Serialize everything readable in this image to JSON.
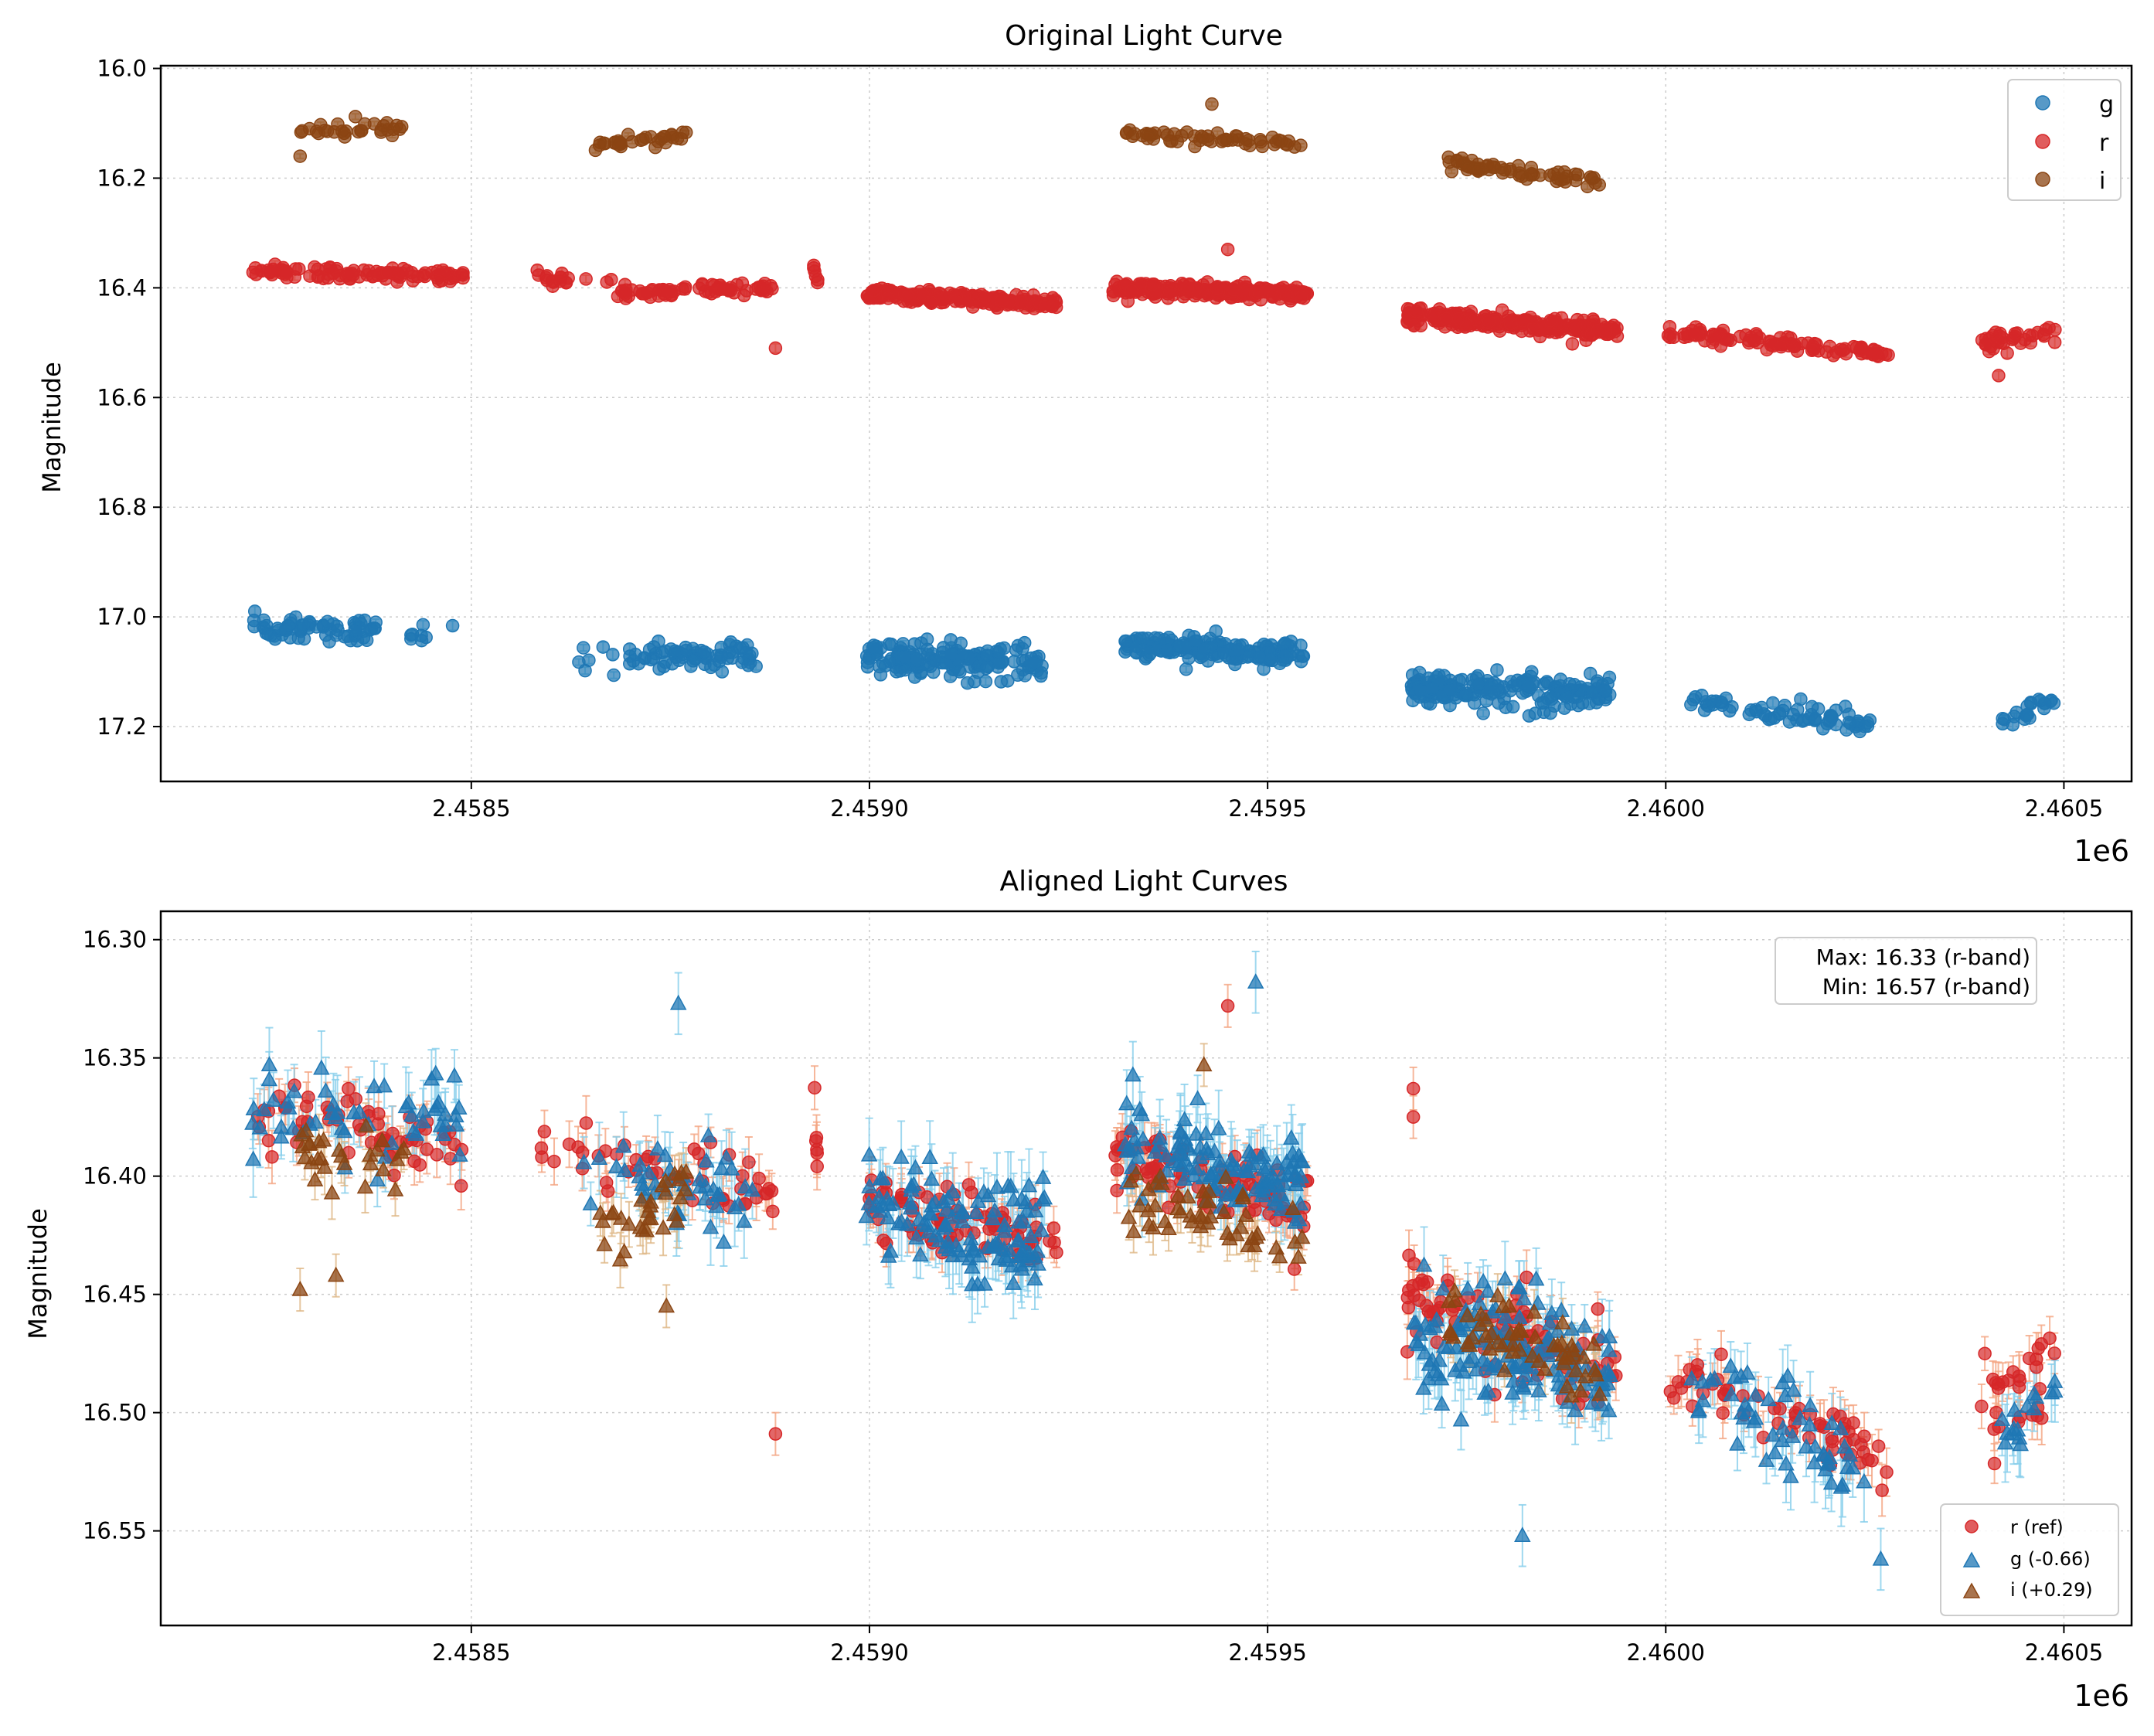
{
  "colors": {
    "g": "#1f77b4",
    "g_err": "#87ceeb",
    "r": "#d62728",
    "r_err": "#f4a582",
    "i": "#8b4513",
    "i_err": "#deb887",
    "grid": "#cccccc",
    "axis": "#000000"
  },
  "chart_data": [
    {
      "type": "scatter",
      "title": "Original Light Curve",
      "xlabel": "",
      "ylabel": "Magnitude",
      "x_offset_label": "1e6",
      "xlim": [
        2458110,
        2460585
      ],
      "ylim": [
        17.3,
        15.995
      ],
      "y_inverted": true,
      "xticks": [
        2458500,
        2459000,
        2459500,
        2460000,
        2460500
      ],
      "xtick_labels": [
        "2.4585",
        "2.4590",
        "2.4595",
        "2.4600",
        "2.4605"
      ],
      "yticks": [
        16.0,
        16.2,
        16.4,
        16.6,
        16.8,
        17.0,
        17.2
      ],
      "ytick_labels": [
        "16.0",
        "16.2",
        "16.4",
        "16.6",
        "16.8",
        "17.0",
        "17.2"
      ],
      "grid": true,
      "legend": {
        "placement": "top-right",
        "entries": [
          {
            "label": "g",
            "band": "g",
            "marker": "circle"
          },
          {
            "label": "r",
            "band": "r",
            "marker": "circle"
          },
          {
            "label": "i",
            "band": "i",
            "marker": "circle"
          }
        ]
      },
      "series": [
        {
          "name": "g",
          "marker": "circle",
          "clusters": [
            {
              "x0": 2458225,
              "x1": 2458380,
              "y0": 17.02,
              "y1": 17.03,
              "spread": 0.022,
              "n": 70,
              "err": 0.008
            },
            {
              "x0": 2458410,
              "x1": 2458490,
              "y0": 17.04,
              "y1": 17.04,
              "spread": 0.022,
              "n": 8,
              "err": 0.008
            },
            {
              "x0": 2458635,
              "x1": 2458860,
              "y0": 17.07,
              "y1": 17.07,
              "spread": 0.025,
              "n": 80,
              "err": 0.008
            },
            {
              "x0": 2458995,
              "x1": 2459220,
              "y0": 17.07,
              "y1": 17.09,
              "spread": 0.028,
              "n": 170,
              "err": 0.008
            },
            {
              "x0": 2459320,
              "x1": 2459545,
              "y0": 17.05,
              "y1": 17.07,
              "spread": 0.022,
              "n": 170,
              "err": 0.008
            },
            {
              "x0": 2459680,
              "x1": 2459930,
              "y0": 17.13,
              "y1": 17.14,
              "spread": 0.028,
              "n": 200,
              "err": 0.008
            },
            {
              "x0": 2460030,
              "x1": 2460270,
              "y0": 17.15,
              "y1": 17.2,
              "spread": 0.02,
              "n": 70,
              "err": 0.008
            },
            {
              "x0": 2460420,
              "x1": 2460490,
              "y0": 17.19,
              "y1": 17.15,
              "spread": 0.015,
              "n": 22,
              "err": 0.008
            }
          ]
        },
        {
          "name": "r",
          "marker": "circle",
          "clusters": [
            {
              "x0": 2458225,
              "x1": 2458490,
              "y0": 16.37,
              "y1": 16.38,
              "spread": 0.012,
              "n": 100,
              "err": 0.008
            },
            {
              "x0": 2458580,
              "x1": 2458680,
              "y0": 16.38,
              "y1": 16.39,
              "spread": 0.012,
              "n": 18,
              "err": 0.008
            },
            {
              "x0": 2458680,
              "x1": 2458880,
              "y0": 16.41,
              "y1": 16.4,
              "spread": 0.012,
              "n": 70,
              "err": 0.008
            },
            {
              "x0": 2458930,
              "x1": 2458935,
              "y0": 16.36,
              "y1": 16.39,
              "spread": 0.01,
              "n": 6,
              "err": 0.008
            },
            {
              "x0": 2458995,
              "x1": 2459235,
              "y0": 16.41,
              "y1": 16.43,
              "spread": 0.012,
              "n": 200,
              "err": 0.008
            },
            {
              "x0": 2459305,
              "x1": 2459550,
              "y0": 16.4,
              "y1": 16.41,
              "spread": 0.012,
              "n": 220,
              "err": 0.008
            },
            {
              "x0": 2459675,
              "x1": 2459940,
              "y0": 16.45,
              "y1": 16.48,
              "spread": 0.015,
              "n": 250,
              "err": 0.008
            },
            {
              "x0": 2460000,
              "x1": 2460280,
              "y0": 16.48,
              "y1": 16.52,
              "spread": 0.012,
              "n": 100,
              "err": 0.008
            },
            {
              "x0": 2460395,
              "x1": 2460490,
              "y0": 16.5,
              "y1": 16.48,
              "spread": 0.02,
              "n": 35,
              "err": 0.008
            }
          ],
          "points": [
            {
              "x": 2458882,
              "y": 16.51
            },
            {
              "x": 2459450,
              "y": 16.33
            },
            {
              "x": 2460418,
              "y": 16.56
            }
          ]
        },
        {
          "name": "i",
          "marker": "circle",
          "clusters": [
            {
              "x0": 2458285,
              "x1": 2458420,
              "y0": 16.11,
              "y1": 16.11,
              "spread": 0.015,
              "n": 30,
              "err": 0.004
            },
            {
              "x0": 2458655,
              "x1": 2458770,
              "y0": 16.14,
              "y1": 16.12,
              "spread": 0.012,
              "n": 32,
              "err": 0.004
            },
            {
              "x0": 2459320,
              "x1": 2459545,
              "y0": 16.12,
              "y1": 16.14,
              "spread": 0.012,
              "n": 55,
              "err": 0.004
            },
            {
              "x0": 2459725,
              "x1": 2459920,
              "y0": 16.17,
              "y1": 16.21,
              "spread": 0.012,
              "n": 60,
              "err": 0.004
            }
          ],
          "points": [
            {
              "x": 2458285,
              "y": 16.16
            },
            {
              "x": 2459430,
              "y": 16.065
            }
          ]
        }
      ]
    },
    {
      "type": "scatter",
      "title": "Aligned Light Curves",
      "xlabel": "",
      "ylabel": "Magnitude",
      "x_offset_label": "1e6",
      "xlim": [
        2458110,
        2460585
      ],
      "ylim": [
        16.59,
        16.288
      ],
      "y_inverted": true,
      "xticks": [
        2458500,
        2459000,
        2459500,
        2460000,
        2460500
      ],
      "xtick_labels": [
        "2.4585",
        "2.4590",
        "2.4595",
        "2.4600",
        "2.4605"
      ],
      "yticks": [
        16.3,
        16.35,
        16.4,
        16.45,
        16.5,
        16.55
      ],
      "ytick_labels": [
        "16.30",
        "16.35",
        "16.40",
        "16.45",
        "16.50",
        "16.55"
      ],
      "grid": true,
      "annotation": {
        "placement": "top-right",
        "lines": [
          "Max: 16.33 (r-band)",
          "Min: 16.57 (r-band)"
        ]
      },
      "legend": {
        "placement": "bottom-right",
        "entries": [
          {
            "label": "r (ref)",
            "band": "r",
            "marker": "circle"
          },
          {
            "label": "g (-0.66)",
            "band": "g",
            "marker": "triangle"
          },
          {
            "label": "i (+0.29)",
            "band": "i",
            "marker": "triangle"
          }
        ]
      },
      "series": [
        {
          "name": "r (ref)",
          "band": "r",
          "marker": "circle",
          "clusters": [
            {
              "x0": 2458225,
              "x1": 2458490,
              "y0": 16.375,
              "y1": 16.385,
              "spread": 0.015,
              "n": 60,
              "err": 0.009
            },
            {
              "x0": 2458580,
              "x1": 2458880,
              "y0": 16.385,
              "y1": 16.405,
              "spread": 0.015,
              "n": 50,
              "err": 0.009
            },
            {
              "x0": 2458930,
              "x1": 2458935,
              "y0": 16.35,
              "y1": 16.4,
              "spread": 0.01,
              "n": 6,
              "err": 0.009
            },
            {
              "x0": 2458995,
              "x1": 2459235,
              "y0": 16.41,
              "y1": 16.43,
              "spread": 0.016,
              "n": 80,
              "err": 0.009
            },
            {
              "x0": 2459305,
              "x1": 2459550,
              "y0": 16.39,
              "y1": 16.415,
              "spread": 0.016,
              "n": 90,
              "err": 0.009
            },
            {
              "x0": 2459675,
              "x1": 2459940,
              "y0": 16.45,
              "y1": 16.485,
              "spread": 0.018,
              "n": 90,
              "err": 0.009
            },
            {
              "x0": 2460000,
              "x1": 2460280,
              "y0": 16.48,
              "y1": 16.52,
              "spread": 0.015,
              "n": 60,
              "err": 0.009
            },
            {
              "x0": 2460395,
              "x1": 2460490,
              "y0": 16.5,
              "y1": 16.485,
              "spread": 0.02,
              "n": 30,
              "err": 0.009
            }
          ],
          "points": [
            {
              "x": 2458882,
              "y": 16.509
            },
            {
              "x": 2459450,
              "y": 16.328
            },
            {
              "x": 2459683,
              "y": 16.363
            },
            {
              "x": 2459683,
              "y": 16.375
            }
          ]
        },
        {
          "name": "g (-0.66)",
          "band": "g",
          "marker": "triangle",
          "clusters": [
            {
              "x0": 2458225,
              "x1": 2458490,
              "y0": 16.37,
              "y1": 16.375,
              "spread": 0.02,
              "n": 55,
              "err": 0.013
            },
            {
              "x0": 2458635,
              "x1": 2458860,
              "y0": 16.395,
              "y1": 16.41,
              "spread": 0.02,
              "n": 45,
              "err": 0.013
            },
            {
              "x0": 2458995,
              "x1": 2459220,
              "y0": 16.41,
              "y1": 16.43,
              "spread": 0.024,
              "n": 120,
              "err": 0.013
            },
            {
              "x0": 2459320,
              "x1": 2459545,
              "y0": 16.385,
              "y1": 16.405,
              "spread": 0.02,
              "n": 120,
              "err": 0.013
            },
            {
              "x0": 2459680,
              "x1": 2459930,
              "y0": 16.465,
              "y1": 16.48,
              "spread": 0.024,
              "n": 140,
              "err": 0.013
            },
            {
              "x0": 2460030,
              "x1": 2460270,
              "y0": 16.485,
              "y1": 16.53,
              "spread": 0.018,
              "n": 55,
              "err": 0.013
            },
            {
              "x0": 2460420,
              "x1": 2460490,
              "y0": 16.51,
              "y1": 16.49,
              "spread": 0.015,
              "n": 16,
              "err": 0.013
            }
          ],
          "points": [
            {
              "x": 2459485,
              "y": 16.318
            },
            {
              "x": 2458760,
              "y": 16.327
            },
            {
              "x": 2459820,
              "y": 16.552
            },
            {
              "x": 2460270,
              "y": 16.562
            }
          ]
        },
        {
          "name": "i (+0.29)",
          "band": "i",
          "marker": "triangle",
          "clusters": [
            {
              "x0": 2458285,
              "x1": 2458420,
              "y0": 16.39,
              "y1": 16.395,
              "spread": 0.015,
              "n": 28,
              "err": 0.009
            },
            {
              "x0": 2458655,
              "x1": 2458770,
              "y0": 16.425,
              "y1": 16.405,
              "spread": 0.015,
              "n": 30,
              "err": 0.009
            },
            {
              "x0": 2459320,
              "x1": 2459545,
              "y0": 16.41,
              "y1": 16.425,
              "spread": 0.015,
              "n": 50,
              "err": 0.009
            },
            {
              "x0": 2459725,
              "x1": 2459920,
              "y0": 16.46,
              "y1": 16.48,
              "spread": 0.015,
              "n": 55,
              "err": 0.009
            }
          ],
          "points": [
            {
              "x": 2458285,
              "y": 16.448
            },
            {
              "x": 2458330,
              "y": 16.442
            },
            {
              "x": 2459420,
              "y": 16.353
            },
            {
              "x": 2458745,
              "y": 16.455
            }
          ]
        }
      ]
    }
  ]
}
